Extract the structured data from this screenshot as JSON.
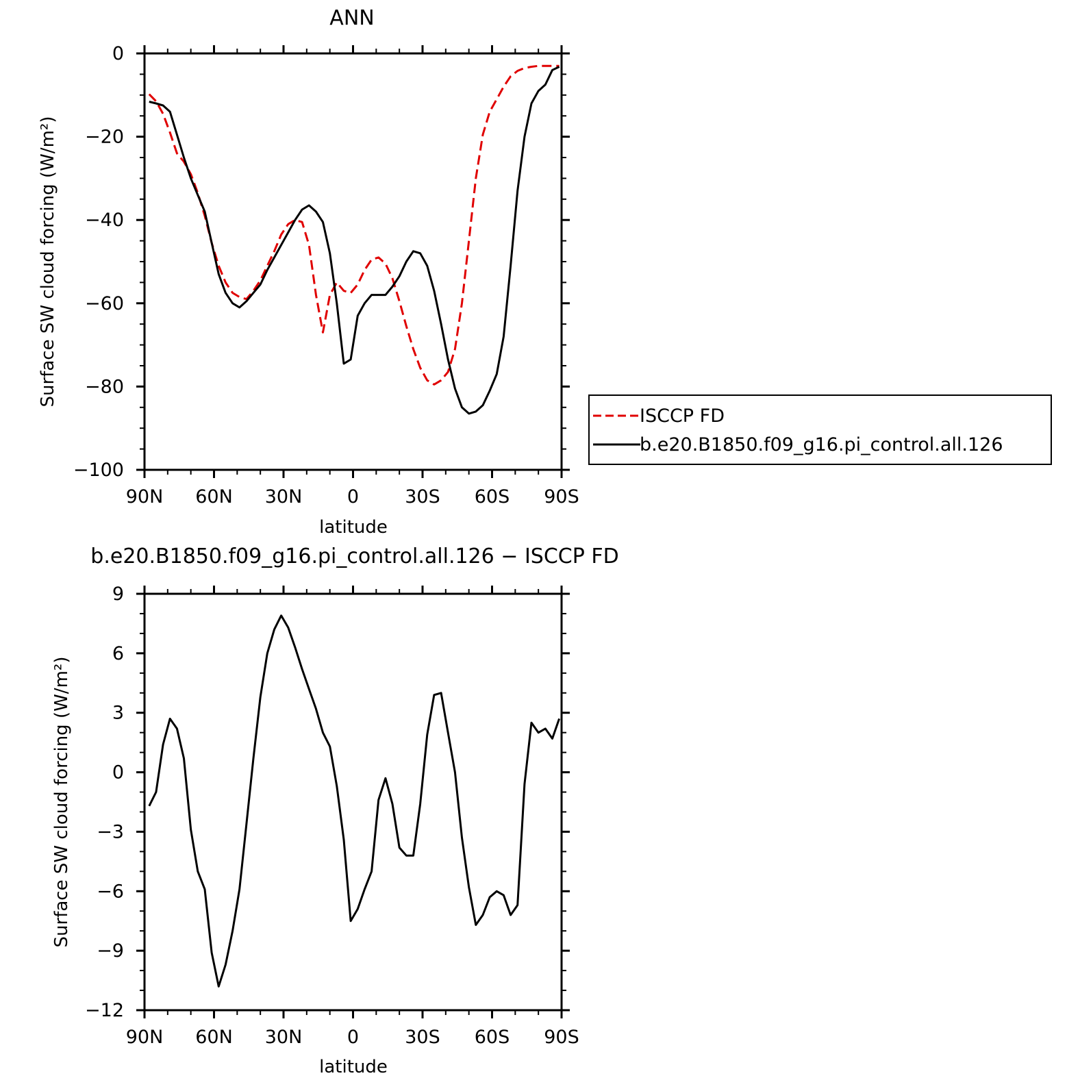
{
  "chart_data": [
    {
      "type": "line",
      "title": "ANN",
      "xlabel": "latitude",
      "ylabel": "Surface SW cloud forcing (W/m²)",
      "xlim": [
        90,
        -90
      ],
      "ylim": [
        -100,
        0
      ],
      "xticks": [
        90,
        60,
        30,
        0,
        -30,
        -60,
        -90
      ],
      "xtick_labels": [
        "90N",
        "60N",
        "30N",
        "0",
        "30S",
        "60S",
        "90S"
      ],
      "yticks": [
        0,
        -20,
        -40,
        -60,
        -80,
        -100
      ],
      "ytick_labels": [
        "0",
        "−20",
        "−40",
        "−60",
        "−80",
        "−100"
      ],
      "legend": {
        "placement": "right",
        "entries": [
          "ISCCP FD",
          "b.e20.B1850.f09_g16.pi_control.all.126"
        ]
      },
      "series": [
        {
          "name": "ISCCP FD",
          "color": "#e00000",
          "dash": "dashed",
          "x": [
            88,
            85,
            82,
            79,
            76,
            73,
            70,
            67,
            64,
            61,
            58,
            55,
            52,
            49,
            46,
            43,
            40,
            37,
            34,
            31,
            28,
            25,
            22,
            19,
            16,
            13,
            10,
            7,
            4,
            1,
            -2,
            -5,
            -8,
            -11,
            -14,
            -17,
            -20,
            -23,
            -26,
            -29,
            -32,
            -35,
            -38,
            -41,
            -44,
            -47,
            -50,
            -53,
            -56,
            -59,
            -62,
            -65,
            -68,
            -71,
            -74,
            -77,
            -80,
            -83,
            -86,
            -89
          ],
          "y": [
            -9.8,
            -11.5,
            -14.5,
            -19.0,
            -24.0,
            -26.0,
            -29.0,
            -33.5,
            -39.0,
            -45.5,
            -51.0,
            -55.0,
            -57.5,
            -58.5,
            -59.0,
            -57.0,
            -54.5,
            -51.0,
            -47.5,
            -43.5,
            -41.0,
            -40.0,
            -40.5,
            -46.0,
            -58.0,
            -67.0,
            -58.0,
            -55.0,
            -57.0,
            -57.5,
            -55.5,
            -52.0,
            -49.5,
            -49.0,
            -50.5,
            -54.0,
            -59.5,
            -65.5,
            -71.0,
            -75.5,
            -78.5,
            -79.5,
            -78.5,
            -76.5,
            -71.0,
            -60.0,
            -45.0,
            -30.0,
            -19.5,
            -14.0,
            -11.0,
            -8.0,
            -5.5,
            -4.2,
            -3.5,
            -3.2,
            -3.0,
            -3.0,
            -3.0,
            -3.0
          ]
        },
        {
          "name": "b.e20.B1850.f09_g16.pi_control.all.126",
          "color": "#000000",
          "dash": "solid",
          "x": [
            88,
            85,
            82,
            79,
            76,
            73,
            70,
            67,
            64,
            61,
            58,
            55,
            52,
            49,
            46,
            43,
            40,
            37,
            34,
            31,
            28,
            25,
            22,
            19,
            16,
            13,
            10,
            7,
            4,
            1,
            -2,
            -5,
            -8,
            -11,
            -14,
            -17,
            -20,
            -23,
            -26,
            -29,
            -32,
            -35,
            -38,
            -41,
            -44,
            -47,
            -50,
            -53,
            -56,
            -59,
            -62,
            -65,
            -68,
            -71,
            -74,
            -77,
            -80,
            -83,
            -86,
            -89
          ],
          "y": [
            -11.6,
            -12.0,
            -12.5,
            -14.0,
            -19.5,
            -25.0,
            -30.0,
            -34.0,
            -38.0,
            -45.5,
            -53.0,
            -57.5,
            -60.0,
            -61.0,
            -59.5,
            -57.5,
            -55.5,
            -52.0,
            -49.0,
            -46.0,
            -43.0,
            -40.0,
            -37.5,
            -36.5,
            -38.0,
            -40.5,
            -48.0,
            -60.0,
            -74.5,
            -73.5,
            -63.0,
            -60.0,
            -58.0,
            -58.0,
            -58.0,
            -56.0,
            -53.5,
            -50.0,
            -47.5,
            -48.0,
            -51.0,
            -57.0,
            -65.0,
            -73.5,
            -80.5,
            -85.0,
            -86.5,
            -86.0,
            -84.5,
            -81.0,
            -77.0,
            -68.0,
            -51.0,
            -33.0,
            -20.0,
            -12.0,
            -9.0,
            -7.5,
            -4.0,
            -3.2
          ]
        }
      ]
    },
    {
      "type": "line",
      "title": "b.e20.B1850.f09_g16.pi_control.all.126 − ISCCP FD",
      "xlabel": "latitude",
      "ylabel": "Surface SW cloud forcing (W/m²)",
      "xlim": [
        90,
        -90
      ],
      "ylim": [
        -12,
        9
      ],
      "xticks": [
        90,
        60,
        30,
        0,
        -30,
        -60,
        -90
      ],
      "xtick_labels": [
        "90N",
        "60N",
        "30N",
        "0",
        "30S",
        "60S",
        "90S"
      ],
      "yticks": [
        9,
        6,
        3,
        0,
        -3,
        -6,
        -9,
        -12
      ],
      "ytick_labels": [
        "9",
        "6",
        "3",
        "0",
        "−3",
        "−6",
        "−9",
        "−12"
      ],
      "series": [
        {
          "color": "#000000",
          "dash": "solid",
          "x": [
            88,
            85,
            82,
            79,
            76,
            73,
            70,
            67,
            64,
            61,
            58,
            55,
            52,
            49,
            46,
            43,
            40,
            37,
            34,
            31,
            28,
            25,
            22,
            19,
            16,
            13,
            10,
            7,
            4,
            1,
            -2,
            -5,
            -8,
            -11,
            -14,
            -17,
            -20,
            -23,
            -26,
            -29,
            -32,
            -35,
            -38,
            -41,
            -44,
            -47,
            -50,
            -53,
            -56,
            -59,
            -62,
            -65,
            -68,
            -71,
            -74,
            -77,
            -80,
            -83,
            -86,
            -89
          ],
          "y": [
            -1.7,
            -1.0,
            1.4,
            2.7,
            2.2,
            0.7,
            -2.9,
            -5.0,
            -5.9,
            -9.1,
            -10.8,
            -9.7,
            -8.0,
            -5.9,
            -2.6,
            0.7,
            3.8,
            6.0,
            7.2,
            7.9,
            7.3,
            6.3,
            5.2,
            4.2,
            3.2,
            2.0,
            1.3,
            -0.7,
            -3.4,
            -7.5,
            -6.9,
            -5.9,
            -5.0,
            -1.4,
            -0.3,
            -1.6,
            -3.8,
            -4.2,
            -4.2,
            -1.6,
            1.9,
            3.9,
            4.0,
            2.0,
            0.0,
            -3.3,
            -5.8,
            -7.7,
            -7.2,
            -6.3,
            -6.0,
            -6.2,
            -7.2,
            -6.7,
            -0.6,
            2.5,
            2.0,
            2.2,
            1.7,
            2.7
          ]
        }
      ]
    }
  ]
}
